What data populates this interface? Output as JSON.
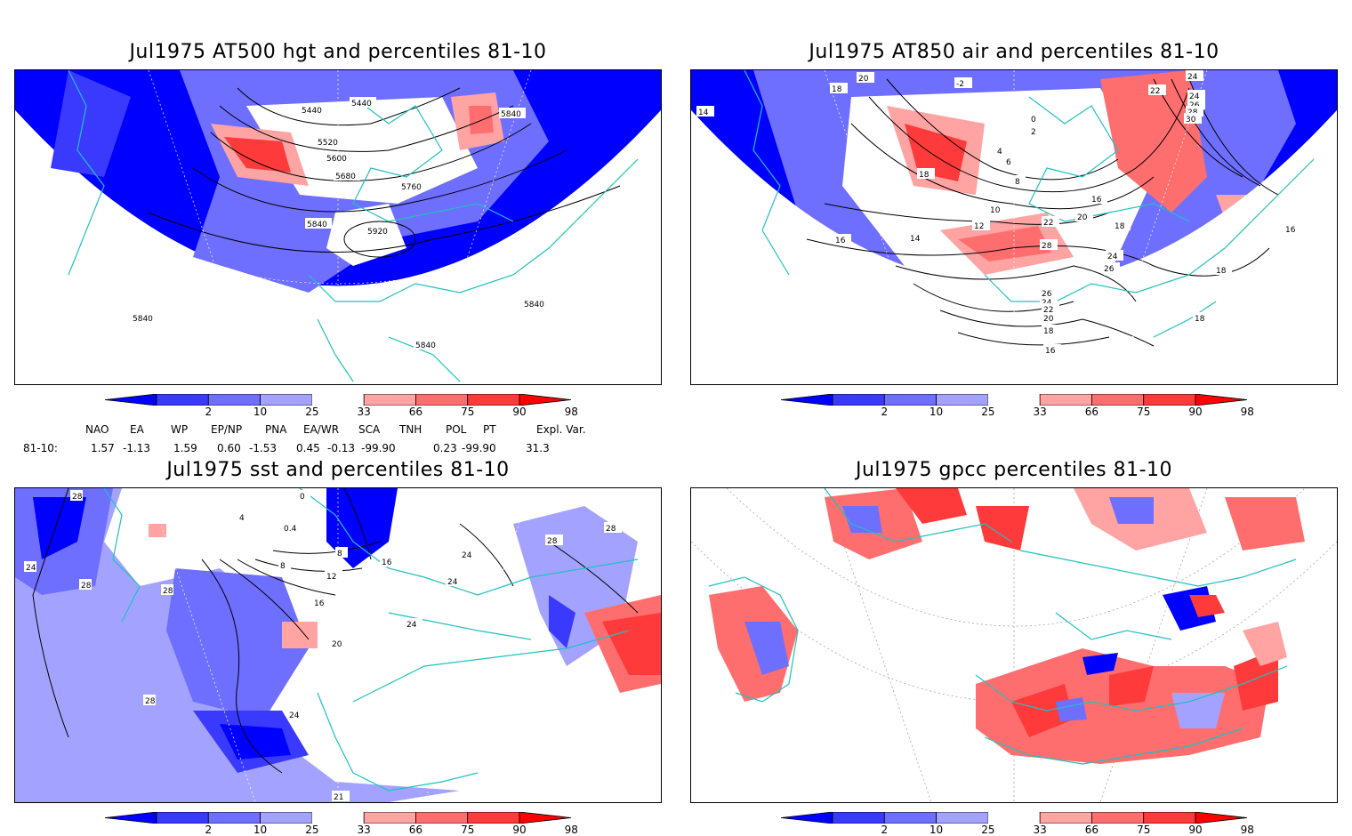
{
  "panels": [
    {
      "title": "Jul1975 AT500 hgt and percentiles 81-10",
      "contour_labels": [
        "5440",
        "5440",
        "5520",
        "5600",
        "5680",
        "5760",
        "5840",
        "5920",
        "5840",
        "5840",
        "5840",
        "5840"
      ]
    },
    {
      "title": "Jul1975 AT850 air and percentiles 81-10",
      "contour_labels": [
        "20",
        "18",
        "14",
        "-2",
        "24",
        "22",
        "24",
        "26",
        "28",
        "30",
        "0",
        "2",
        "4",
        "6",
        "8",
        "18",
        "10",
        "12",
        "14",
        "16",
        "22",
        "20",
        "18",
        "28",
        "24",
        "26",
        "16",
        "18",
        "16",
        "26",
        "24",
        "22",
        "20",
        "18",
        "16",
        "18",
        "16"
      ]
    },
    {
      "title": "Jul1975 sst and percentiles 81-10",
      "contour_labels": [
        "28",
        "24",
        "28",
        "28",
        "0",
        "4",
        "0.4",
        "8",
        "8",
        "12",
        "16",
        "16",
        "20",
        "24",
        "24",
        "24",
        "28",
        "28",
        "28",
        "24",
        "21"
      ]
    },
    {
      "title": "Jul1975 gpcc percentiles 81-10",
      "contour_labels": []
    }
  ],
  "colorbar": {
    "ticks": [
      "2",
      "10",
      "25",
      "33",
      "66",
      "75",
      "90",
      "98"
    ],
    "colors": [
      "#0000ff",
      "#3a3aff",
      "#6e6eff",
      "#a3a3ff",
      "#ffffff",
      "#ffa3a3",
      "#ff6e6e",
      "#ff3a3a",
      "#ff0000"
    ]
  },
  "indices": {
    "headers": [
      "NAO",
      "EA",
      "WP",
      "EP/NP",
      "PNA",
      "EA/WR",
      "SCA",
      "TNH",
      "POL",
      "PT",
      "Expl. Var."
    ],
    "row_label": "81-10:",
    "values": [
      "1.57",
      "-1.13",
      "1.59",
      "0.60",
      "-1.53",
      "0.45",
      "-0.13",
      "-99.90",
      "0.23",
      "-99.90",
      "31.3"
    ]
  },
  "colors": {
    "coast": "#20c0c0",
    "contour": "#000000",
    "blue": "#0000ff",
    "red": "#ff0000"
  }
}
